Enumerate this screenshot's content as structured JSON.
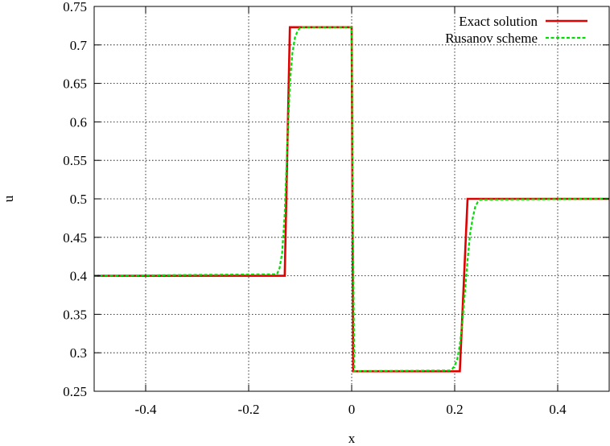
{
  "chart_data": {
    "type": "line",
    "title": "",
    "xlabel": "x",
    "ylabel": "u",
    "xlim": [
      -0.5,
      0.5
    ],
    "ylim": [
      0.25,
      0.75
    ],
    "x_ticks": [
      -0.4,
      -0.2,
      0,
      0.2,
      0.4
    ],
    "x_tick_labels": [
      "-0.4",
      "-0.2",
      "0",
      "0.2",
      "0.4"
    ],
    "y_ticks": [
      0.25,
      0.3,
      0.35,
      0.4,
      0.45,
      0.5,
      0.55,
      0.6,
      0.65,
      0.7,
      0.75
    ],
    "y_tick_labels": [
      "0.25",
      "0.3",
      "0.35",
      "0.4",
      "0.45",
      "0.5",
      "0.55",
      "0.6",
      "0.65",
      "0.7",
      "0.75"
    ],
    "grid": true,
    "legend_position": "top-right",
    "series": [
      {
        "name": "Exact solution",
        "color": "#e00000",
        "dash": "solid",
        "x": [
          -0.5,
          -0.13,
          -0.12,
          0.0,
          0.003,
          0.21,
          0.225,
          0.5
        ],
        "y": [
          0.4,
          0.4,
          0.723,
          0.723,
          0.276,
          0.276,
          0.5,
          0.5
        ]
      },
      {
        "name": "Rusanov scheme",
        "color": "#00dd00",
        "dash": "dashed",
        "x": [
          -0.5,
          -0.145,
          -0.14,
          -0.135,
          -0.13,
          -0.125,
          -0.12,
          -0.115,
          -0.11,
          -0.105,
          -0.1,
          0.0,
          0.002,
          0.005,
          0.19,
          0.195,
          0.2,
          0.205,
          0.21,
          0.215,
          0.22,
          0.225,
          0.23,
          0.235,
          0.24,
          0.245,
          0.25,
          0.5
        ],
        "y": [
          0.4,
          0.402,
          0.41,
          0.43,
          0.48,
          0.57,
          0.65,
          0.69,
          0.71,
          0.718,
          0.723,
          0.723,
          0.5,
          0.276,
          0.277,
          0.279,
          0.283,
          0.292,
          0.31,
          0.34,
          0.38,
          0.42,
          0.455,
          0.475,
          0.49,
          0.496,
          0.499,
          0.5
        ]
      }
    ]
  }
}
